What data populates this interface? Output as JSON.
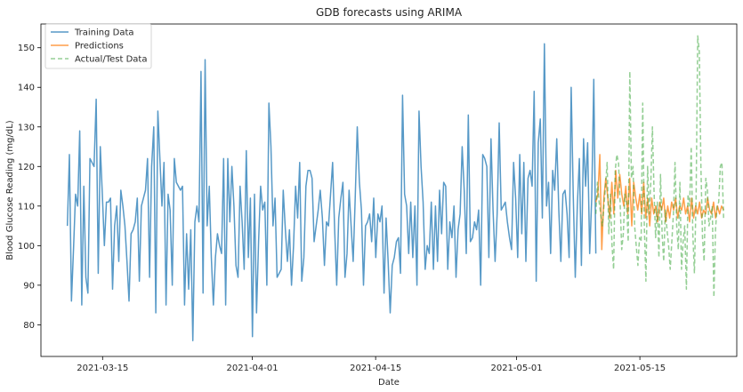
{
  "chart_data": {
    "type": "line",
    "title": "GDB forecasts using ARIMA",
    "xlabel": "Date",
    "ylabel": "Blood Glucose Reading (mg/dL)",
    "xlim": [
      "2021-03-08",
      "2021-05-26"
    ],
    "ylim": [
      72,
      156
    ],
    "x_ticks": [
      "2021-03-15",
      "2021-04-01",
      "2021-04-15",
      "2021-05-01",
      "2021-05-15"
    ],
    "y_ticks": [
      80,
      90,
      100,
      110,
      120,
      130,
      140,
      150
    ],
    "grid": false,
    "legend_position": "top-left",
    "series": [
      {
        "name": "Training Data",
        "color": "#1f77b4",
        "style": "solid",
        "x_start": "2021-03-11T00:00",
        "x_end": "2021-05-10T00:00",
        "values": [
          105,
          123,
          86,
          99,
          113,
          110,
          129,
          85,
          115,
          92,
          88,
          122,
          121,
          120,
          137,
          93,
          125,
          113,
          100,
          111,
          111,
          112,
          89,
          105,
          110,
          96,
          114,
          110,
          105,
          96,
          86,
          103,
          104,
          106,
          112,
          91,
          110,
          112,
          114,
          122,
          92,
          120,
          130,
          83,
          134,
          122,
          110,
          121,
          85,
          113,
          109,
          90,
          122,
          116,
          115,
          114,
          115,
          85,
          103,
          89,
          104,
          76,
          106,
          110,
          106,
          144,
          88,
          147,
          105,
          115,
          97,
          85,
          97,
          103,
          100,
          98,
          122,
          85,
          122,
          106,
          120,
          110,
          95,
          92,
          115,
          106,
          94,
          124,
          97,
          112,
          77,
          113,
          83,
          101,
          115,
          109,
          111,
          90,
          136,
          125,
          105,
          112,
          92,
          93,
          94,
          114,
          104,
          96,
          104,
          90,
          100,
          115,
          107,
          121,
          91,
          97,
          115,
          119,
          119,
          117,
          101,
          105,
          109,
          114,
          107,
          95,
          106,
          105,
          113,
          121,
          104,
          90,
          107,
          112,
          116,
          92,
          98,
          114,
          105,
          96,
          112,
          130,
          116,
          109,
          90,
          105,
          106,
          108,
          101,
          112,
          97,
          108,
          106,
          110,
          88,
          107,
          96,
          83,
          95,
          97,
          101,
          102,
          93,
          138,
          113,
          110,
          98,
          111,
          97,
          110,
          90,
          134,
          120,
          111,
          94,
          100,
          98,
          111,
          94,
          110,
          96,
          114,
          103,
          116,
          115,
          94,
          106,
          102,
          110,
          92,
          104,
          108,
          125,
          114,
          98,
          133,
          101,
          102,
          106,
          104,
          109,
          90,
          123,
          122,
          120,
          97,
          127,
          109,
          96,
          108,
          131,
          109,
          110,
          111,
          106,
          102,
          99,
          121,
          112,
          97,
          123,
          103,
          121,
          96,
          117,
          119,
          115,
          139,
          91,
          126,
          132,
          107,
          151,
          110,
          116,
          98,
          119,
          114,
          127,
          109,
          96,
          113,
          114,
          108,
          97,
          140,
          113,
          92,
          110,
          122,
          95,
          127,
          115,
          126,
          98,
          112,
          142,
          98
        ]
      },
      {
        "name": "Predictions",
        "color": "#ff7f0e",
        "style": "solid",
        "x_start": "2021-05-10T00:00",
        "x_end": "2021-05-24T12:00",
        "values": [
          111,
          113,
          123,
          99,
          112,
          117,
          112,
          107,
          116,
          108,
          119,
          112,
          118,
          113,
          110,
          115,
          108,
          117,
          105,
          116,
          112,
          109,
          113,
          108,
          116,
          107,
          112,
          105,
          112,
          108,
          110,
          106,
          111,
          109,
          112,
          106,
          110,
          107,
          111,
          109,
          112,
          107,
          110,
          109,
          112,
          108,
          110,
          106,
          112,
          107,
          110,
          108,
          111,
          107,
          109,
          108,
          112,
          109,
          108,
          111,
          107,
          110,
          108,
          110,
          109
        ]
      },
      {
        "name": "Actual/Test Data",
        "color": "#2ca02c",
        "style": "dashed",
        "x_start": "2021-05-10T00:00",
        "x_end": "2021-05-24T12:00",
        "values": [
          108,
          116,
          111,
          108,
          105,
          110,
          115,
          121,
          103,
          113,
          100,
          94,
          119,
          123,
          121,
          111,
          99,
          103,
          113,
          111,
          101,
          144,
          117,
          120,
          105,
          100,
          95,
          102,
          101,
          136,
          105,
          91,
          120,
          108,
          116,
          130,
          114,
          102,
          111,
          97,
          118,
          103,
          96,
          109,
          104,
          100,
          94,
          101,
          108,
          121,
          105,
          99,
          116,
          94,
          101,
          105,
          89,
          113,
          110,
          125,
          103,
          93,
          112,
          153,
          149,
          120,
          102,
          96,
          117,
          114,
          105,
          107,
          110,
          87,
          104,
          110,
          111,
          120,
          121,
          107
        ]
      }
    ]
  }
}
